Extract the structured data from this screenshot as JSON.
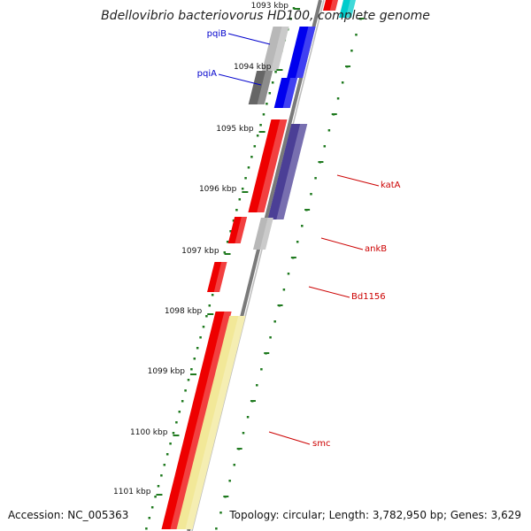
{
  "title": "Bdellovibrio bacteriovorus HD100, complete genome",
  "accession": "Accession: NC_005363",
  "topology": "Topology: circular; Length: 3,782,950 bp; Genes: 3,629",
  "ticks": [
    "1093 kbp",
    "1094 kbp",
    "1095 kbp",
    "1096 kbp",
    "1097 kbp",
    "1098 kbp",
    "1099 kbp",
    "1100 kbp",
    "1101 kbp"
  ],
  "genes": [
    {
      "name": "pqiB",
      "color": "#0000cc"
    },
    {
      "name": "pqiA",
      "color": "#0000cc"
    },
    {
      "name": "katA",
      "color": "#cc0000"
    },
    {
      "name": "ankB",
      "color": "#cc0000"
    },
    {
      "name": "Bd1156",
      "color": "#cc0000"
    },
    {
      "name": "smc",
      "color": "#cc0000"
    }
  ],
  "colors": {
    "backbone": "#7a7a7a",
    "gc_dots": "#1f7a1f",
    "red_feature": "#ee0000",
    "blue_feature": "#0000ee",
    "cyan_feature": "#00cccc",
    "purple_feature": "#4b3f96",
    "gray_feature": "#b8b8b8",
    "dark_gray_feature": "#666666",
    "yellow_feature": "#f2e898"
  }
}
